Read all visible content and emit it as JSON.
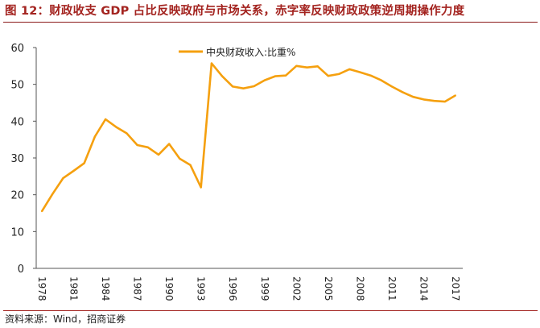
{
  "title": "图 12：财政收支 GDP 占比反映政府与市场关系，赤字率反映财政政策逆周期操作力度",
  "source": "资料来源：Wind，招商证券",
  "colors": {
    "series": "#f5a00f",
    "title": "#a3231f",
    "axis": "#555555"
  },
  "chart_data": {
    "type": "line",
    "title": "",
    "xlabel": "",
    "ylabel": "",
    "ylim": [
      0,
      60
    ],
    "yticks": [
      0,
      10,
      20,
      30,
      40,
      50,
      60
    ],
    "xticks": [
      "1978",
      "1981",
      "1984",
      "1987",
      "1990",
      "1993",
      "1996",
      "1999",
      "2002",
      "2005",
      "2008",
      "2011",
      "2014",
      "2017"
    ],
    "grid": false,
    "legend": "top-center",
    "x": [
      1978,
      1979,
      1980,
      1981,
      1982,
      1983,
      1984,
      1985,
      1986,
      1987,
      1988,
      1989,
      1990,
      1991,
      1992,
      1993,
      1994,
      1995,
      1996,
      1997,
      1998,
      1999,
      2000,
      2001,
      2002,
      2003,
      2004,
      2005,
      2006,
      2007,
      2008,
      2009,
      2010,
      2011,
      2012,
      2013,
      2014,
      2015,
      2016,
      2017
    ],
    "series": [
      {
        "name": "中央财政收入:比重%",
        "values": [
          15.5,
          20.2,
          24.5,
          26.5,
          28.6,
          35.8,
          40.5,
          38.4,
          36.7,
          33.5,
          32.9,
          30.9,
          33.8,
          29.8,
          28.1,
          22.0,
          55.7,
          52.2,
          49.4,
          48.9,
          49.5,
          51.1,
          52.2,
          52.4,
          55.0,
          54.6,
          54.9,
          52.3,
          52.8,
          54.1,
          53.3,
          52.4,
          51.1,
          49.4,
          47.9,
          46.6,
          45.9,
          45.5,
          45.3,
          47.0
        ]
      }
    ]
  }
}
